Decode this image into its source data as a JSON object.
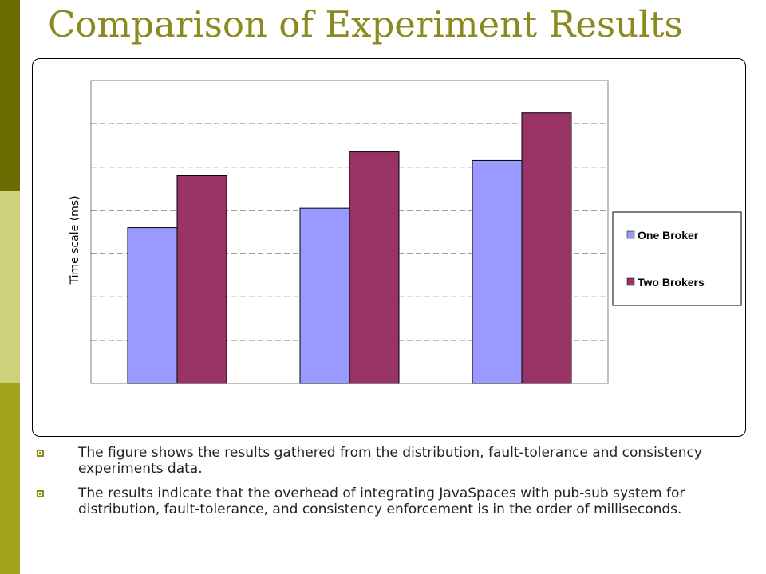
{
  "slide": {
    "title": "Comparison of Experiment Results",
    "bullets": [
      "The figure shows the results gathered from the distribution, fault-tolerance and consistency experiments data.",
      "The results indicate that the overhead of integrating JavaSpaces with pub-sub system for distribution, fault-tolerance, and consistency enforcement is in the order of milliseconds."
    ]
  },
  "colors": {
    "band_top": "#6b6b00",
    "band_mid": "#cfd07a",
    "band_bottom": "#a1a21c",
    "title": "#8a8a1f",
    "series_one": "#9999ff",
    "series_two": "#993366"
  },
  "chart_data": {
    "type": "bar",
    "title": "",
    "xlabel": "",
    "ylabel": "Time scale (ms)",
    "categories": [
      "",
      "",
      ""
    ],
    "ylim": [
      0,
      7
    ],
    "yticks": [
      0,
      1,
      2,
      3,
      4,
      5,
      6,
      7
    ],
    "grid": true,
    "grid_style": "dashed",
    "legend_position": "right",
    "series": [
      {
        "name": "One Broker",
        "color": "#9999ff",
        "values": [
          3.6,
          4.05,
          5.15
        ]
      },
      {
        "name": "Two Brokers",
        "color": "#993366",
        "values": [
          4.8,
          5.35,
          6.25
        ]
      }
    ]
  }
}
